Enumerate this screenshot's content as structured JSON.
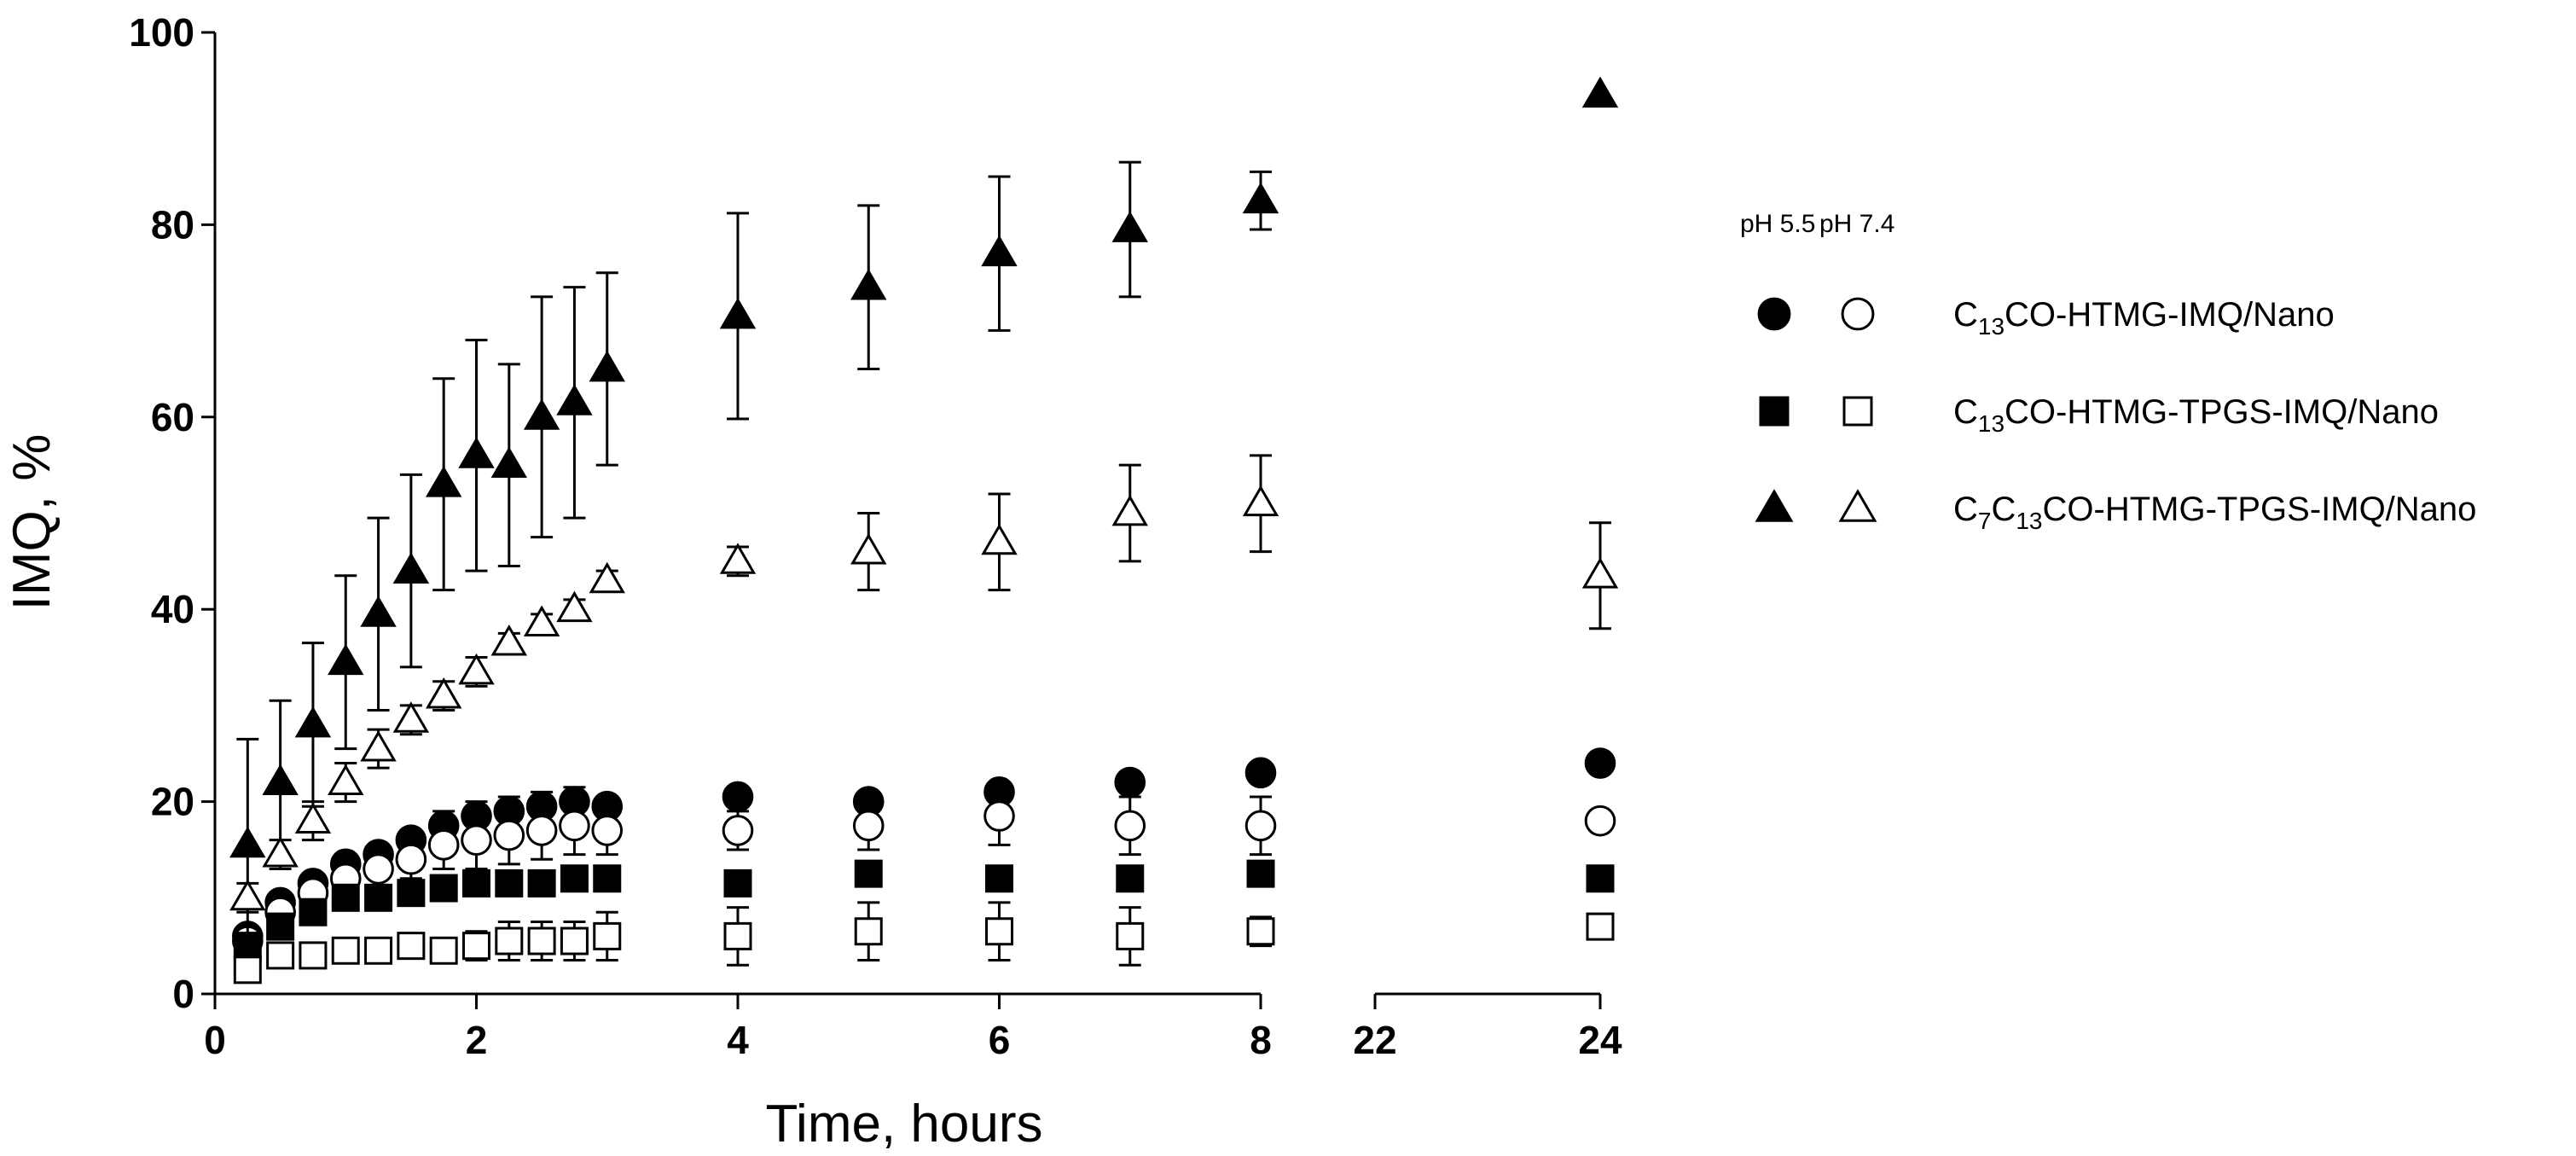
{
  "chart_data": {
    "type": "scatter",
    "xlabel": "Time, hours",
    "ylabel": "IMQ, %",
    "ylim": [
      0,
      100
    ],
    "yticks": [
      0,
      20,
      40,
      60,
      80,
      100
    ],
    "x_segments": [
      {
        "range": [
          0,
          8
        ],
        "ticks": [
          0,
          2,
          4,
          6,
          8
        ]
      },
      {
        "range": [
          22,
          24
        ],
        "ticks": [
          22,
          24
        ]
      }
    ],
    "axis_break": "between 8 and 22",
    "grid": false,
    "legend": {
      "position": "right",
      "headers": [
        "pH 5.5",
        "pH 7.4"
      ],
      "entries": [
        {
          "label_base": "C",
          "label_sub": "13",
          "label_rest": "CO-HTMG-IMQ/Nano",
          "marker": "circle"
        },
        {
          "label_base": "C",
          "label_sub": "13",
          "label_rest": "CO-HTMG-TPGS-IMQ/Nano",
          "marker": "square"
        },
        {
          "label_base": "C",
          "label_sub": "7",
          "label_mid": "C",
          "label_sub2": "13",
          "label_rest": "CO-HTMG-TPGS-IMQ/Nano",
          "marker": "triangle"
        }
      ]
    },
    "series": [
      {
        "name": "C13CO-HTMG-IMQ/Nano pH 5.5",
        "marker": "circle",
        "fill": "#000000",
        "x": [
          0.25,
          0.5,
          0.75,
          1,
          1.25,
          1.5,
          1.75,
          2,
          2.25,
          2.5,
          2.75,
          3,
          4,
          5,
          6,
          7,
          8,
          24
        ],
        "y": [
          6,
          9.5,
          11.5,
          13.5,
          14.5,
          16,
          17.5,
          18.5,
          19,
          19.5,
          20,
          19.5,
          20.5,
          20,
          21,
          22,
          23,
          24
        ],
        "err": [
          1,
          1,
          1,
          1,
          1,
          1,
          1.5,
          1.5,
          1.5,
          1.5,
          1.5,
          1,
          1,
          1,
          1,
          1,
          1,
          1
        ]
      },
      {
        "name": "C13CO-HTMG-IMQ/Nano pH 7.4",
        "marker": "circle",
        "fill": "#ffffff",
        "x": [
          0.25,
          0.5,
          0.75,
          1,
          1.25,
          1.5,
          1.75,
          2,
          2.25,
          2.5,
          2.75,
          3,
          4,
          5,
          6,
          7,
          8,
          24
        ],
        "y": [
          5.5,
          8.5,
          10.5,
          12,
          13,
          14,
          15.5,
          16,
          16.5,
          17,
          17.5,
          17,
          17,
          17.5,
          18.5,
          17.5,
          17.5,
          18
        ],
        "err": [
          1,
          1,
          1.5,
          1.5,
          2,
          2,
          2.5,
          3,
          3,
          3,
          3,
          2.5,
          2,
          2.5,
          3,
          3,
          3,
          1
        ]
      },
      {
        "name": "C13CO-HTMG-TPGS-IMQ/Nano pH 5.5",
        "marker": "square",
        "fill": "#000000",
        "x": [
          0.25,
          0.5,
          0.75,
          1,
          1.25,
          1.5,
          1.75,
          2,
          2.25,
          2.5,
          2.75,
          3,
          4,
          5,
          6,
          7,
          8,
          24
        ],
        "y": [
          5,
          7,
          8.5,
          10,
          10,
          10.5,
          11,
          11.5,
          11.5,
          11.5,
          12,
          12,
          11.5,
          12.5,
          12,
          12,
          12.5,
          12
        ],
        "err": [
          0.5,
          0.5,
          0.5,
          0.5,
          0.5,
          0.5,
          0.5,
          1,
          1,
          1,
          1,
          1,
          1,
          1,
          1,
          1,
          1,
          1
        ]
      },
      {
        "name": "C13CO-HTMG-TPGS-IMQ/Nano pH 7.4",
        "marker": "square",
        "fill": "#ffffff",
        "x": [
          0.25,
          0.5,
          0.75,
          1,
          1.25,
          1.5,
          1.75,
          2,
          2.25,
          2.5,
          2.75,
          3,
          4,
          5,
          6,
          7,
          8,
          24
        ],
        "y": [
          2.5,
          4,
          4,
          4.5,
          4.5,
          5,
          4.5,
          5,
          5.5,
          5.5,
          5.5,
          6,
          6,
          6.5,
          6.5,
          6,
          6.5,
          7
        ],
        "err": [
          0.5,
          0.5,
          0.5,
          1,
          1,
          1,
          1,
          1.5,
          2,
          2,
          2,
          2.5,
          3,
          3,
          3,
          3,
          1.5,
          1
        ]
      },
      {
        "name": "C7C13CO-HTMG-TPGS-IMQ/Nano pH 5.5",
        "marker": "triangle",
        "fill": "#000000",
        "x": [
          0.25,
          0.5,
          0.75,
          1,
          1.25,
          1.5,
          1.75,
          2,
          2.25,
          2.5,
          2.75,
          3,
          4,
          5,
          6,
          7,
          8,
          24
        ],
        "y": [
          15.5,
          22,
          28,
          34.5,
          39.5,
          44,
          53,
          56,
          55,
          60,
          61.5,
          65,
          70.5,
          73.5,
          77,
          79.5,
          82.5,
          93.5
        ],
        "err": [
          11,
          8.5,
          8.5,
          9,
          10,
          10,
          11,
          12,
          10.5,
          12.5,
          12,
          10,
          10.7,
          8.5,
          8,
          7,
          3,
          0
        ]
      },
      {
        "name": "C7C13CO-HTMG-TPGS-IMQ/Nano pH 7.4",
        "marker": "triangle",
        "fill": "#ffffff",
        "x": [
          0.25,
          0.5,
          0.75,
          1,
          1.25,
          1.5,
          1.75,
          2,
          2.25,
          2.5,
          2.75,
          3,
          4,
          5,
          6,
          7,
          8,
          24
        ],
        "y": [
          10,
          14.5,
          18,
          22,
          25.5,
          28.5,
          31,
          33.5,
          36.5,
          38.5,
          40,
          43,
          45,
          46,
          47,
          50,
          51,
          43.5
        ],
        "err": [
          1.5,
          1.5,
          2,
          2,
          2,
          1.5,
          1.5,
          1.5,
          1,
          1,
          1,
          1,
          1.5,
          4,
          5,
          5,
          5,
          5.5
        ]
      }
    ]
  }
}
